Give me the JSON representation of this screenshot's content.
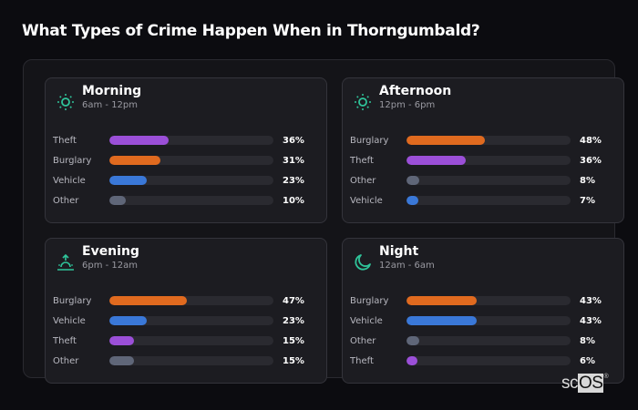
{
  "title": "What Types of Crime Happen When in Thorngumbald?",
  "colors": {
    "Theft": "#9b4fd8",
    "Burglary": "#e06a1f",
    "Vehicle": "#3a78d8",
    "Other": "#5f6678",
    "icon": "#2fc49a"
  },
  "logo": {
    "sc": "sc",
    "os": "OS",
    "reg": "®"
  },
  "cards": [
    {
      "name": "Morning",
      "time": "6am - 12pm",
      "icon": "sun-icon",
      "rows": [
        {
          "label": "Theft",
          "value": 36,
          "display": "36%"
        },
        {
          "label": "Burglary",
          "value": 31,
          "display": "31%"
        },
        {
          "label": "Vehicle",
          "value": 23,
          "display": "23%"
        },
        {
          "label": "Other",
          "value": 10,
          "display": "10%"
        }
      ]
    },
    {
      "name": "Afternoon",
      "time": "12pm - 6pm",
      "icon": "sun-icon",
      "rows": [
        {
          "label": "Burglary",
          "value": 48,
          "display": "48%"
        },
        {
          "label": "Theft",
          "value": 36,
          "display": "36%"
        },
        {
          "label": "Other",
          "value": 8,
          "display": "8%"
        },
        {
          "label": "Vehicle",
          "value": 7,
          "display": "7%"
        }
      ]
    },
    {
      "name": "Evening",
      "time": "6pm - 12am",
      "icon": "sunset-icon",
      "rows": [
        {
          "label": "Burglary",
          "value": 47,
          "display": "47%"
        },
        {
          "label": "Vehicle",
          "value": 23,
          "display": "23%"
        },
        {
          "label": "Theft",
          "value": 15,
          "display": "15%"
        },
        {
          "label": "Other",
          "value": 15,
          "display": "15%"
        }
      ]
    },
    {
      "name": "Night",
      "time": "12am - 6am",
      "icon": "moon-icon",
      "rows": [
        {
          "label": "Burglary",
          "value": 43,
          "display": "43%"
        },
        {
          "label": "Vehicle",
          "value": 43,
          "display": "43%"
        },
        {
          "label": "Other",
          "value": 8,
          "display": "8%"
        },
        {
          "label": "Theft",
          "value": 6,
          "display": "6%"
        }
      ]
    }
  ],
  "chart_data": {
    "type": "bar",
    "title": "What Types of Crime Happen When in Thorngumbald?",
    "orientation": "horizontal",
    "xlabel": "",
    "ylabel": "",
    "xlim": [
      0,
      100
    ],
    "panels": [
      {
        "title": "Morning",
        "subtitle": "6am - 12pm",
        "categories": [
          "Theft",
          "Burglary",
          "Vehicle",
          "Other"
        ],
        "values": [
          36,
          31,
          23,
          10
        ]
      },
      {
        "title": "Afternoon",
        "subtitle": "12pm - 6pm",
        "categories": [
          "Burglary",
          "Theft",
          "Other",
          "Vehicle"
        ],
        "values": [
          48,
          36,
          8,
          7
        ]
      },
      {
        "title": "Evening",
        "subtitle": "6pm - 12am",
        "categories": [
          "Burglary",
          "Vehicle",
          "Theft",
          "Other"
        ],
        "values": [
          47,
          23,
          15,
          15
        ]
      },
      {
        "title": "Night",
        "subtitle": "12am - 6am",
        "categories": [
          "Burglary",
          "Vehicle",
          "Other",
          "Theft"
        ],
        "values": [
          43,
          43,
          8,
          6
        ]
      }
    ],
    "grid": false,
    "legend": "none"
  }
}
